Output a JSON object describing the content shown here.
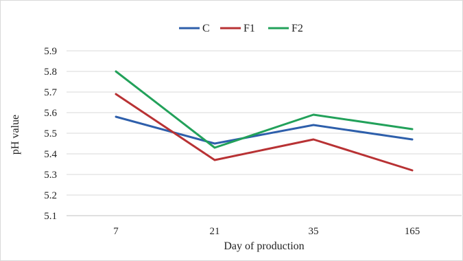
{
  "chart_data": {
    "type": "line",
    "title": "",
    "xlabel": "Day of production",
    "ylabel": "pH value",
    "categories": [
      "7",
      "21",
      "35",
      "165"
    ],
    "ylim": [
      5.1,
      5.9
    ],
    "yticks": [
      "5.1",
      "5.2",
      "5.3",
      "5.4",
      "5.5",
      "5.6",
      "5.7",
      "5.8",
      "5.9"
    ],
    "grid": true,
    "legend_position": "top",
    "series": [
      {
        "name": "C",
        "color": "#2e5fab",
        "values": [
          5.58,
          5.45,
          5.54,
          5.47
        ]
      },
      {
        "name": "F1",
        "color": "#b83234",
        "values": [
          5.69,
          5.37,
          5.47,
          5.32
        ]
      },
      {
        "name": "F2",
        "color": "#22a15a",
        "values": [
          5.8,
          5.43,
          5.59,
          5.52
        ]
      }
    ]
  }
}
